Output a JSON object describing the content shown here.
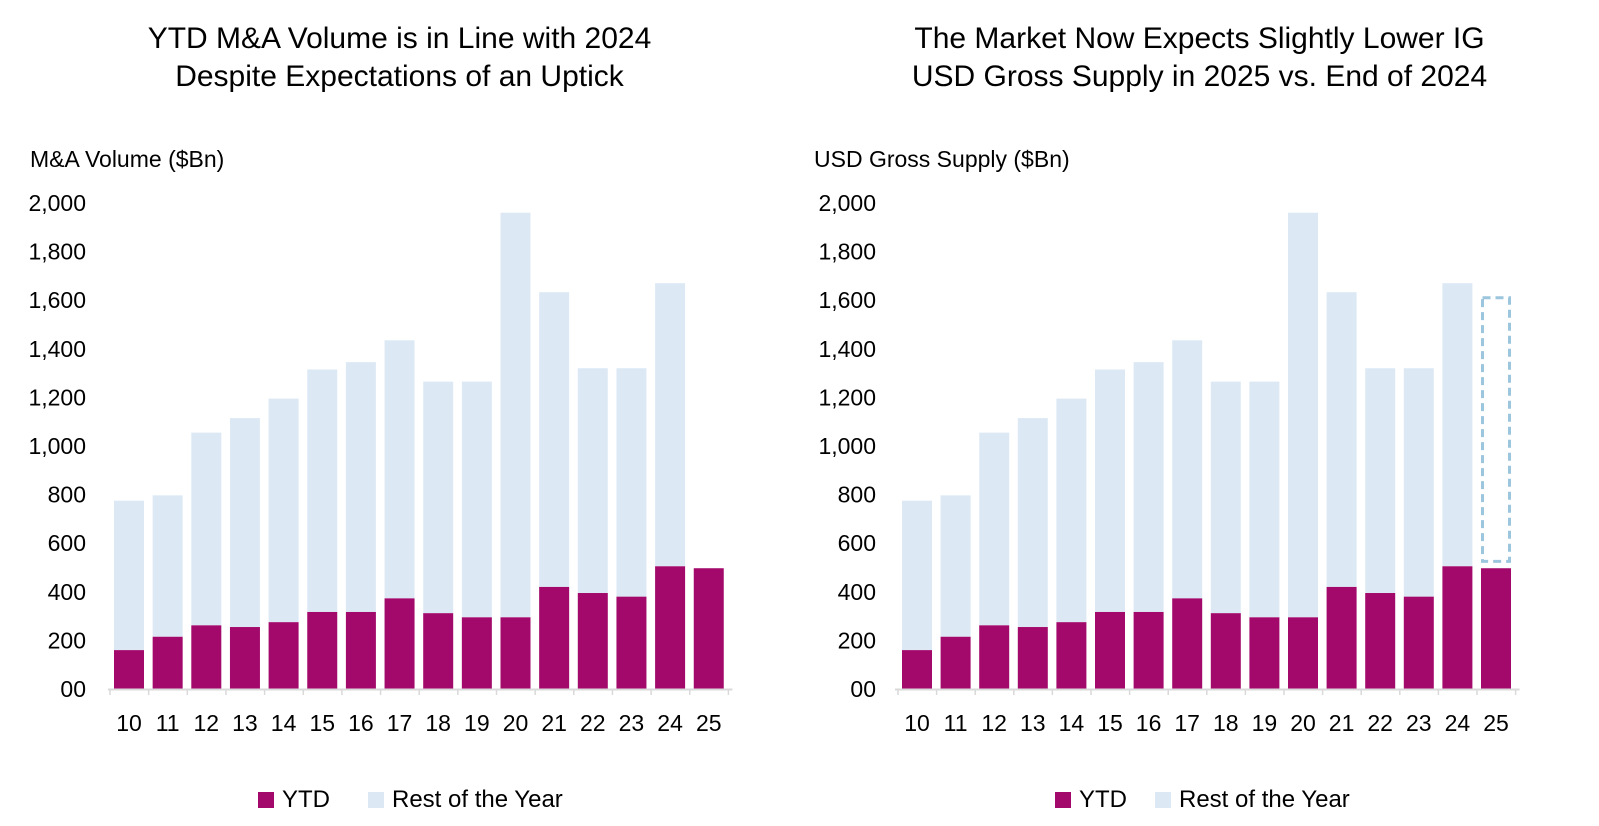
{
  "colors": {
    "ytd": "#a3096a",
    "rest": "#dce9f5",
    "axis": "#d9d9d9",
    "forecast_outline": "#9cc6de"
  },
  "chart_data": [
    {
      "type": "bar",
      "stacked": true,
      "title_lines": [
        "YTD M&A Volume is in Line with 2024",
        "Despite Expectations of an Uptick"
      ],
      "ylabel": "M&A Volume ($Bn)",
      "xlabel": "",
      "categories": [
        "10",
        "11",
        "12",
        "13",
        "14",
        "15",
        "16",
        "17",
        "18",
        "19",
        "20",
        "21",
        "22",
        "23",
        "24",
        "25"
      ],
      "ylim": [
        0,
        2000
      ],
      "yticks": [
        0,
        200,
        400,
        600,
        800,
        1000,
        1200,
        1400,
        1600,
        1800,
        2000
      ],
      "ytick_labels": [
        "00",
        "200",
        "400",
        "600",
        "800",
        "1,000",
        "1,200",
        "1,400",
        "1,600",
        "1,800",
        "2,000"
      ],
      "series": [
        {
          "name": "YTD",
          "color_key": "ytd",
          "values": [
            160,
            215,
            262,
            255,
            275,
            317,
            317,
            373,
            312,
            295,
            295,
            420,
            395,
            380,
            505,
            497
          ]
        },
        {
          "name": "Rest of the Year",
          "color_key": "rest",
          "values": [
            615,
            582,
            793,
            860,
            920,
            998,
            1028,
            1062,
            953,
            970,
            1665,
            1213,
            925,
            940,
            1165,
            null
          ]
        }
      ],
      "legend": {
        "position": "bottom",
        "entries": [
          "YTD",
          "Rest of the Year"
        ]
      },
      "grid": false
    },
    {
      "type": "bar",
      "stacked": true,
      "title_lines": [
        "The Market Now Expects Slightly Lower IG",
        "USD Gross Supply in 2025 vs. End of 2024"
      ],
      "ylabel": "USD Gross Supply ($Bn)",
      "xlabel": "",
      "categories": [
        "10",
        "11",
        "12",
        "13",
        "14",
        "15",
        "16",
        "17",
        "18",
        "19",
        "20",
        "21",
        "22",
        "23",
        "24",
        "25"
      ],
      "ylim": [
        0,
        2000
      ],
      "yticks": [
        0,
        200,
        400,
        600,
        800,
        1000,
        1200,
        1400,
        1600,
        1800,
        2000
      ],
      "ytick_labels": [
        "00",
        "200",
        "400",
        "600",
        "800",
        "1,000",
        "1,200",
        "1,400",
        "1,600",
        "1,800",
        "2,000"
      ],
      "series": [
        {
          "name": "YTD",
          "color_key": "ytd",
          "values": [
            160,
            215,
            262,
            255,
            275,
            317,
            317,
            373,
            312,
            295,
            295,
            420,
            395,
            380,
            505,
            497
          ]
        },
        {
          "name": "Rest of the Year",
          "color_key": "rest",
          "values": [
            615,
            582,
            793,
            860,
            920,
            998,
            1028,
            1062,
            953,
            970,
            1665,
            1213,
            925,
            940,
            1165,
            null
          ]
        }
      ],
      "expected_rest_2025": {
        "from": 525,
        "to": 1610
      },
      "legend": {
        "position": "bottom",
        "entries": [
          "YTD",
          "Rest of the Year"
        ]
      },
      "grid": false
    }
  ]
}
